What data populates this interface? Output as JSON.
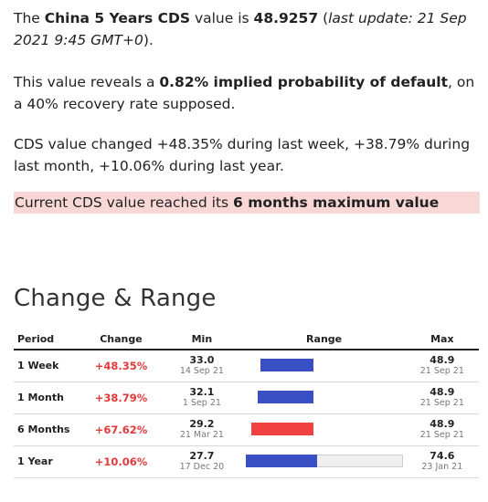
{
  "intro": {
    "p1_a": "The ",
    "p1_b": "China 5 Years CDS",
    "p1_c": " value is ",
    "p1_d": "48.9257",
    "p1_e": " (",
    "p1_f": "last update: 21 Sep 2021 9:45 GMT+0",
    "p1_g": ").",
    "p2_a": "This value reveals a ",
    "p2_b": "0.82% implied probability of default",
    "p2_c": ", on a 40% recovery rate supposed.",
    "p3": "CDS value changed +48.35% during last week, +38.79% during last month, +10.06% during last year.",
    "alert_a": "Current CDS value reached its ",
    "alert_b": "6 months maximum value"
  },
  "section_title": "Change & Range",
  "table": {
    "headers": {
      "period": "Period",
      "change": "Change",
      "min": "Min",
      "range": "Range",
      "max": "Max"
    },
    "rows": [
      {
        "period": "1 Week",
        "change": "+48.35%",
        "min": "33.0",
        "min_date": "14 Sep 21",
        "max": "48.9",
        "max_date": "21 Sep 21",
        "range_from": 0.09,
        "range_to": 0.43,
        "range_color": "#3b4fc4"
      },
      {
        "period": "1 Month",
        "change": "+38.79%",
        "min": "32.1",
        "min_date": "1 Sep 21",
        "max": "48.9",
        "max_date": "21 Sep 21",
        "range_from": 0.07,
        "range_to": 0.43,
        "range_color": "#3b4fc4"
      },
      {
        "period": "6 Months",
        "change": "+67.62%",
        "min": "29.2",
        "min_date": "21 Mar 21",
        "max": "48.9",
        "max_date": "21 Sep 21",
        "range_from": 0.03,
        "range_to": 0.43,
        "range_color": "#f04040"
      },
      {
        "period": "1 Year",
        "change": "+10.06%",
        "min": "27.7",
        "min_date": "17 Dec 20",
        "max": "74.6",
        "max_date": "23 Jan 21",
        "range_from": 0.0,
        "range_to": 1.0,
        "range_fill_to": 0.45,
        "range_color": "#3b4fc4"
      }
    ]
  }
}
